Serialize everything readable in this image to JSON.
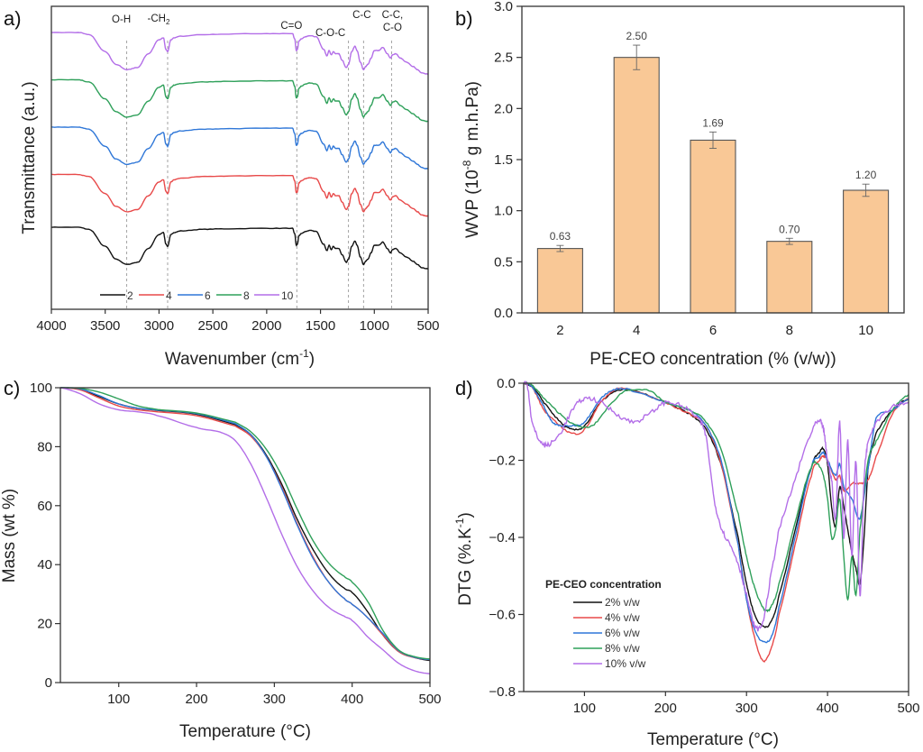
{
  "colors": {
    "2": "#111111",
    "4": "#e84a4a",
    "6": "#2f77d8",
    "8": "#2fa05a",
    "10": "#b36ee8",
    "bar_fill": "#f9c896",
    "bar_edge": "#555555"
  },
  "chart_data": [
    {
      "id": "a",
      "panel_label": "a)",
      "type": "line",
      "title": "",
      "xlabel": "Wavenumber (cm",
      "xlabel_sup": "-1",
      "xlabel_end": ")",
      "ylabel": "Transmittance (a.u.)",
      "xlim": [
        4000,
        500
      ],
      "xticks": [
        4000,
        3500,
        3000,
        2500,
        2000,
        1500,
        1000,
        500
      ],
      "yticks_shown": false,
      "reference_lines": [
        {
          "x": 3300,
          "label": "O-H"
        },
        {
          "x": 2920,
          "label": "-CH",
          "sub": "2"
        },
        {
          "x": 1720,
          "label": "C=O"
        },
        {
          "x": 1240,
          "label": "C-O-C"
        },
        {
          "x": 1100,
          "label": "C-C"
        },
        {
          "x": 840,
          "label": "C-C,",
          "label2": "C-O"
        }
      ],
      "legend": {
        "position": "bottom-left",
        "entries": [
          "2",
          "4",
          "6",
          "8",
          "10"
        ]
      },
      "offsets": {
        "2": 0,
        "4": 1,
        "6": 2,
        "8": 3,
        "10": 4
      },
      "spectrum_shape": {
        "x": [
          4000,
          3750,
          3650,
          3500,
          3400,
          3300,
          3200,
          3100,
          3000,
          2960,
          2935,
          2920,
          2890,
          2860,
          2800,
          2600,
          2400,
          2000,
          1760,
          1740,
          1725,
          1715,
          1700,
          1680,
          1640,
          1600,
          1540,
          1470,
          1440,
          1420,
          1400,
          1380,
          1360,
          1330,
          1300,
          1260,
          1240,
          1210,
          1180,
          1160,
          1130,
          1100,
          1080,
          1060,
          1030,
          1000,
          960,
          920,
          880,
          850,
          830,
          800,
          760,
          700,
          640,
          600,
          560,
          520,
          500
        ],
        "y": [
          0.0,
          0.0,
          -0.02,
          -0.18,
          -0.3,
          -0.35,
          -0.33,
          -0.2,
          -0.07,
          -0.05,
          -0.16,
          -0.18,
          -0.07,
          -0.05,
          -0.035,
          -0.02,
          -0.015,
          -0.01,
          -0.01,
          -0.06,
          -0.17,
          -0.16,
          -0.08,
          -0.06,
          -0.04,
          -0.03,
          -0.04,
          -0.16,
          -0.22,
          -0.17,
          -0.21,
          -0.18,
          -0.2,
          -0.2,
          -0.26,
          -0.33,
          -0.3,
          -0.18,
          -0.13,
          -0.17,
          -0.28,
          -0.35,
          -0.32,
          -0.3,
          -0.24,
          -0.17,
          -0.17,
          -0.14,
          -0.2,
          -0.24,
          -0.21,
          -0.2,
          -0.24,
          -0.28,
          -0.32,
          -0.35,
          -0.38,
          -0.39,
          -0.39
        ]
      },
      "series": [
        {
          "name": "2"
        },
        {
          "name": "4"
        },
        {
          "name": "6"
        },
        {
          "name": "8"
        },
        {
          "name": "10"
        }
      ]
    },
    {
      "id": "b",
      "panel_label": "b)",
      "type": "bar",
      "title": "",
      "xlabel": "PE-CEO concentration (% (v/w))",
      "ylabel": "WVP (10",
      "ylabel_sup": "-8",
      "ylabel_end": " g m.h.Pa)",
      "categories": [
        "2",
        "4",
        "6",
        "8",
        "10"
      ],
      "values": [
        0.63,
        2.5,
        1.69,
        0.7,
        1.2
      ],
      "value_labels": [
        "0.63",
        "2.50",
        "1.69",
        "0.70",
        "1.20"
      ],
      "errors": [
        0.03,
        0.12,
        0.08,
        0.03,
        0.06
      ],
      "ylim": [
        0,
        3.0
      ],
      "yticks": [
        0.0,
        0.5,
        1.0,
        1.5,
        2.0,
        2.5,
        3.0
      ],
      "ytick_labels": [
        "0.0",
        "0.5",
        "1.0",
        "1.5",
        "2.0",
        "2.5",
        "3.0"
      ]
    },
    {
      "id": "c",
      "panel_label": "c)",
      "type": "line",
      "title": "",
      "xlabel": "Temperature (°C)",
      "ylabel": "Mass (wt %)",
      "xlim": [
        25,
        500
      ],
      "ylim": [
        0,
        100
      ],
      "xticks": [
        100,
        200,
        300,
        400,
        500
      ],
      "yticks": [
        0,
        20,
        40,
        60,
        80,
        100
      ],
      "series": [
        {
          "name": "2",
          "x": [
            25,
            50,
            75,
            100,
            125,
            150,
            200,
            250,
            270,
            290,
            310,
            330,
            350,
            370,
            390,
            400,
            420,
            440,
            460,
            480,
            500
          ],
          "y": [
            100,
            99.5,
            97,
            94.5,
            93,
            92.3,
            91,
            87.5,
            84,
            77,
            67,
            55,
            45,
            37,
            32,
            30.5,
            24,
            16,
            10.5,
            8.5,
            7.5
          ]
        },
        {
          "name": "4",
          "x": [
            25,
            50,
            75,
            100,
            125,
            150,
            200,
            250,
            270,
            290,
            310,
            330,
            350,
            370,
            390,
            400,
            420,
            440,
            460,
            480,
            500
          ],
          "y": [
            100,
            99.3,
            96.5,
            93.8,
            92.5,
            91.8,
            90.5,
            87,
            83.5,
            76.5,
            66,
            53.5,
            42.5,
            34,
            28.5,
            26.5,
            22,
            16,
            10.5,
            8.5,
            7.8
          ]
        },
        {
          "name": "6",
          "x": [
            25,
            50,
            75,
            100,
            125,
            150,
            200,
            250,
            270,
            290,
            310,
            330,
            350,
            370,
            390,
            400,
            420,
            440,
            460,
            480,
            500
          ],
          "y": [
            100,
            99.6,
            97.3,
            94.5,
            93,
            92.4,
            91.2,
            87.8,
            84,
            76.5,
            65.5,
            53,
            42,
            34,
            28.5,
            26.5,
            22,
            16.5,
            10.8,
            8.6,
            7.8
          ]
        },
        {
          "name": "8",
          "x": [
            25,
            50,
            75,
            100,
            125,
            150,
            200,
            250,
            270,
            290,
            310,
            330,
            350,
            370,
            390,
            400,
            420,
            440,
            460,
            480,
            500
          ],
          "y": [
            100,
            99.8,
            98.5,
            96.2,
            93.8,
            92.6,
            91.4,
            88.3,
            85,
            79,
            70,
            58.5,
            48,
            40.5,
            36,
            34,
            27.5,
            17.5,
            11,
            8.8,
            8
          ]
        },
        {
          "name": "10",
          "x": [
            25,
            50,
            75,
            100,
            125,
            150,
            200,
            230,
            250,
            270,
            290,
            310,
            330,
            350,
            370,
            390,
            400,
            420,
            440,
            460,
            480,
            500
          ],
          "y": [
            100,
            98,
            94.5,
            92.5,
            91.8,
            90.5,
            86.5,
            85,
            82,
            74,
            62.5,
            50,
            39,
            31,
            25.5,
            22.5,
            21,
            15.5,
            11,
            6.5,
            4,
            3
          ]
        }
      ]
    },
    {
      "id": "d",
      "panel_label": "d)",
      "type": "line",
      "title": "",
      "xlabel": "Temperature (°C)",
      "ylabel": "DTG (%.K",
      "ylabel_sup": "-1",
      "ylabel_end": ")",
      "xlim": [
        25,
        500
      ],
      "ylim": [
        -0.8,
        0.0
      ],
      "xticks": [
        100,
        200,
        300,
        400,
        500
      ],
      "yticks": [
        0.0,
        -0.2,
        -0.4,
        -0.6,
        -0.8
      ],
      "ytick_labels": [
        "0.0",
        "−0.2",
        "−0.4",
        "−0.6",
        "−0.8"
      ],
      "legend": {
        "title": "PE-CEO concentration",
        "position": "bottom-left",
        "entries": [
          "2% v/w",
          "4% v/w",
          "6% v/w",
          "8% v/w",
          "10% v/w"
        ]
      },
      "series": [
        {
          "name": "2% v/w",
          "x": [
            25,
            35,
            50,
            70,
            85,
            100,
            120,
            140,
            160,
            200,
            230,
            250,
            270,
            290,
            300,
            310,
            320,
            330,
            340,
            360,
            380,
            390,
            395,
            400,
            405,
            410,
            415,
            420,
            425,
            430,
            435,
            440,
            445,
            450,
            460,
            480,
            500
          ],
          "y": [
            0.0,
            -0.01,
            -0.05,
            -0.1,
            -0.12,
            -0.11,
            -0.05,
            -0.02,
            -0.02,
            -0.05,
            -0.08,
            -0.12,
            -0.22,
            -0.4,
            -0.52,
            -0.6,
            -0.63,
            -0.62,
            -0.55,
            -0.38,
            -0.22,
            -0.18,
            -0.17,
            -0.21,
            -0.32,
            -0.37,
            -0.27,
            -0.32,
            -0.38,
            -0.44,
            -0.48,
            -0.52,
            -0.4,
            -0.22,
            -0.13,
            -0.07,
            -0.04
          ]
        },
        {
          "name": "4% v/w",
          "x": [
            25,
            35,
            50,
            70,
            85,
            100,
            120,
            140,
            160,
            200,
            230,
            250,
            270,
            290,
            300,
            310,
            320,
            330,
            340,
            360,
            380,
            390,
            395,
            400,
            410,
            415,
            420,
            430,
            440,
            450,
            460,
            480,
            500
          ],
          "y": [
            0.0,
            -0.01,
            -0.07,
            -0.11,
            -0.13,
            -0.12,
            -0.05,
            -0.015,
            -0.02,
            -0.05,
            -0.08,
            -0.11,
            -0.22,
            -0.42,
            -0.56,
            -0.66,
            -0.72,
            -0.69,
            -0.6,
            -0.42,
            -0.24,
            -0.2,
            -0.19,
            -0.2,
            -0.25,
            -0.24,
            -0.28,
            -0.26,
            -0.26,
            -0.25,
            -0.19,
            -0.08,
            -0.04
          ]
        },
        {
          "name": "6% v/w",
          "x": [
            25,
            35,
            50,
            60,
            70,
            85,
            100,
            120,
            140,
            160,
            200,
            230,
            250,
            270,
            290,
            300,
            310,
            320,
            330,
            340,
            360,
            380,
            390,
            395,
            400,
            410,
            415,
            420,
            430,
            440,
            450,
            460,
            480,
            500
          ],
          "y": [
            0.0,
            -0.01,
            -0.06,
            -0.1,
            -0.11,
            -0.11,
            -0.1,
            -0.04,
            -0.015,
            -0.02,
            -0.05,
            -0.07,
            -0.11,
            -0.21,
            -0.42,
            -0.56,
            -0.64,
            -0.67,
            -0.66,
            -0.58,
            -0.4,
            -0.22,
            -0.19,
            -0.18,
            -0.2,
            -0.24,
            -0.21,
            -0.27,
            -0.3,
            -0.35,
            -0.22,
            -0.09,
            -0.07,
            -0.04
          ]
        },
        {
          "name": "8% v/w",
          "x": [
            25,
            35,
            50,
            70,
            90,
            110,
            130,
            150,
            180,
            200,
            230,
            250,
            270,
            290,
            300,
            310,
            320,
            325,
            330,
            340,
            360,
            380,
            388,
            395,
            400,
            405,
            410,
            415,
            420,
            425,
            430,
            435,
            440,
            450,
            460,
            480,
            500
          ],
          "y": [
            0.0,
            -0.005,
            -0.04,
            -0.08,
            -0.11,
            -0.11,
            -0.06,
            -0.02,
            -0.02,
            -0.05,
            -0.07,
            -0.1,
            -0.18,
            -0.34,
            -0.45,
            -0.53,
            -0.58,
            -0.59,
            -0.58,
            -0.52,
            -0.36,
            -0.22,
            -0.21,
            -0.24,
            -0.3,
            -0.4,
            -0.38,
            -0.3,
            -0.45,
            -0.56,
            -0.45,
            -0.55,
            -0.38,
            -0.2,
            -0.15,
            -0.07,
            -0.03
          ]
        },
        {
          "name": "10% v/w",
          "x": [
            25,
            30,
            35,
            45,
            55,
            70,
            85,
            100,
            120,
            140,
            160,
            180,
            200,
            220,
            240,
            250,
            260,
            270,
            280,
            290,
            300,
            310,
            320,
            330,
            340,
            360,
            380,
            390,
            395,
            400,
            405,
            410,
            415,
            420,
            425,
            430,
            435,
            440,
            445,
            450,
            460,
            480,
            500
          ],
          "y": [
            0.0,
            -0.01,
            -0.1,
            -0.15,
            -0.16,
            -0.13,
            -0.07,
            -0.04,
            -0.05,
            -0.08,
            -0.1,
            -0.08,
            -0.05,
            -0.06,
            -0.09,
            -0.14,
            -0.3,
            -0.38,
            -0.42,
            -0.47,
            -0.55,
            -0.63,
            -0.62,
            -0.5,
            -0.38,
            -0.25,
            -0.13,
            -0.1,
            -0.12,
            -0.2,
            -0.25,
            -0.35,
            -0.1,
            -0.4,
            -0.15,
            -0.45,
            -0.2,
            -0.55,
            -0.25,
            -0.15,
            -0.1,
            -0.06,
            -0.05
          ]
        }
      ]
    }
  ]
}
